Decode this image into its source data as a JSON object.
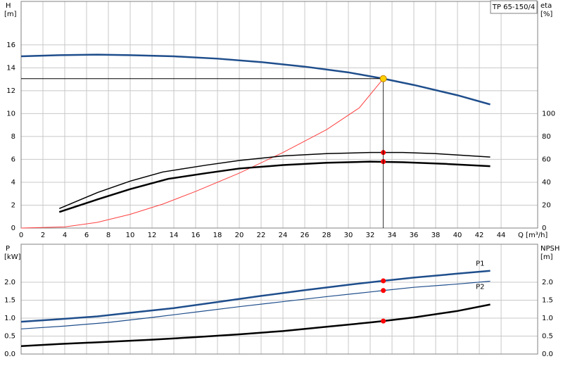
{
  "chart_data": [
    {
      "type": "line",
      "pump_label": "TP 65-150/4",
      "ylabel": "H",
      "ylabel_unit": "[m]",
      "y2label": "eta",
      "y2label_unit": "[%]",
      "xlabel": "Q [m³/h]",
      "xlim": [
        0,
        47.35
      ],
      "xticks": [
        0,
        2,
        4,
        6,
        8,
        10,
        12,
        14,
        16,
        18,
        20,
        22,
        24,
        26,
        28,
        30,
        32,
        34,
        36,
        38,
        40,
        42,
        44
      ],
      "ylim": [
        0,
        19.8
      ],
      "yticks": [
        0,
        2,
        4,
        6,
        8,
        10,
        12,
        14,
        16
      ],
      "y2lim": [
        0,
        198
      ],
      "y2ticks": [
        0,
        20,
        40,
        60,
        80,
        100
      ],
      "grid": true,
      "series": [
        {
          "color": "#1f4e8c",
          "width": 2.5,
          "x": [
            0,
            3.5,
            7,
            10,
            14,
            18,
            22,
            26,
            30,
            33.2,
            36,
            40,
            43
          ],
          "values": [
            15.0,
            15.1,
            15.15,
            15.1,
            15.0,
            14.8,
            14.5,
            14.1,
            13.6,
            13.05,
            12.5,
            11.6,
            10.8
          ]
        },
        {
          "color": "#ff4040",
          "width": 1,
          "x": [
            0,
            4,
            7,
            10,
            13,
            16,
            20,
            24,
            28,
            31,
            33.2
          ],
          "values": [
            0,
            0.1,
            0.5,
            1.2,
            2.1,
            3.2,
            4.8,
            6.6,
            8.6,
            10.5,
            13.05
          ]
        },
        {
          "color": "#000000",
          "width": 1.5,
          "axis": "y2",
          "x": [
            3.5,
            7,
            10,
            13,
            17,
            20,
            24,
            28,
            32,
            35,
            38,
            43
          ],
          "values": [
            17,
            31,
            41,
            49,
            55,
            59,
            63,
            65,
            66,
            66,
            65,
            62
          ]
        },
        {
          "color": "#000000",
          "width": 2.5,
          "axis": "y2",
          "x": [
            3.5,
            7,
            10,
            13.5,
            17,
            20,
            24,
            28,
            32,
            35,
            39,
            43
          ],
          "values": [
            14,
            25,
            34,
            43,
            48,
            52,
            55,
            57,
            58,
            57.5,
            56,
            54
          ]
        },
        {
          "color": "#ff0000",
          "style": "marker",
          "axis": "y2",
          "x": [
            33.2,
            33.2
          ],
          "values": [
            66,
            58
          ]
        },
        {
          "color": "#ffd000",
          "style": "duty",
          "x": [
            33.2
          ],
          "values": [
            13.05
          ]
        }
      ]
    },
    {
      "type": "line",
      "ylabel": "P",
      "ylabel_unit": "[kW]",
      "y2label": "NPSH",
      "y2label_unit": "[m]",
      "xlim": [
        0,
        47.35
      ],
      "xticks": [
        0,
        2,
        4,
        6,
        8,
        10,
        12,
        14,
        16,
        18,
        20,
        22,
        24,
        26,
        28,
        30,
        32,
        34,
        36,
        38,
        40,
        42,
        44
      ],
      "ylim": [
        0,
        3.06
      ],
      "yticks": [
        {
          "value": 0,
          "label": "0.0"
        },
        {
          "value": 0.5,
          "label": "0.5"
        },
        {
          "value": 1,
          "label": "1.0"
        },
        {
          "value": 1.5,
          "label": "1.5"
        },
        {
          "value": 2,
          "label": "2.0"
        }
      ],
      "y2lim": [
        0,
        3.06
      ],
      "y2ticks": [
        {
          "value": 0,
          "label": "0.0"
        },
        {
          "value": 0.5,
          "label": "0.5"
        },
        {
          "value": 1,
          "label": "1.0"
        },
        {
          "value": 1.5,
          "label": "1.5"
        },
        {
          "value": 2,
          "label": "2.0"
        }
      ],
      "grid": true,
      "series": [
        {
          "name": "P1",
          "color": "#1f4e8c",
          "width": 2.5,
          "x": [
            0,
            3.5,
            7,
            10,
            14,
            18,
            22,
            26,
            30,
            33.2,
            36,
            40,
            43
          ],
          "values": [
            0.9,
            0.97,
            1.05,
            1.15,
            1.28,
            1.45,
            1.62,
            1.78,
            1.93,
            2.04,
            2.13,
            2.24,
            2.32
          ]
        },
        {
          "name": "P2",
          "color": "#1f4e8c",
          "width": 1.2,
          "x": [
            0,
            4,
            8,
            12,
            16,
            20,
            24,
            28,
            32,
            33.2,
            36,
            40,
            43
          ],
          "values": [
            0.7,
            0.78,
            0.88,
            1.02,
            1.17,
            1.32,
            1.46,
            1.6,
            1.73,
            1.77,
            1.86,
            1.95,
            2.03
          ]
        },
        {
          "color": "#000000",
          "width": 2.5,
          "axis": "y2",
          "x": [
            0,
            3.5,
            8,
            12,
            16,
            20,
            24,
            28,
            32,
            33.2,
            36,
            40,
            43
          ],
          "values": [
            0.22,
            0.28,
            0.34,
            0.4,
            0.47,
            0.55,
            0.64,
            0.76,
            0.88,
            0.92,
            1.02,
            1.2,
            1.38
          ]
        },
        {
          "color": "#ff0000",
          "style": "marker",
          "x": [
            33.2,
            33.2
          ],
          "values": [
            2.04,
            1.77
          ]
        },
        {
          "color": "#ff0000",
          "style": "marker",
          "axis": "y2",
          "x": [
            33.2
          ],
          "values": [
            0.92
          ]
        }
      ]
    }
  ]
}
